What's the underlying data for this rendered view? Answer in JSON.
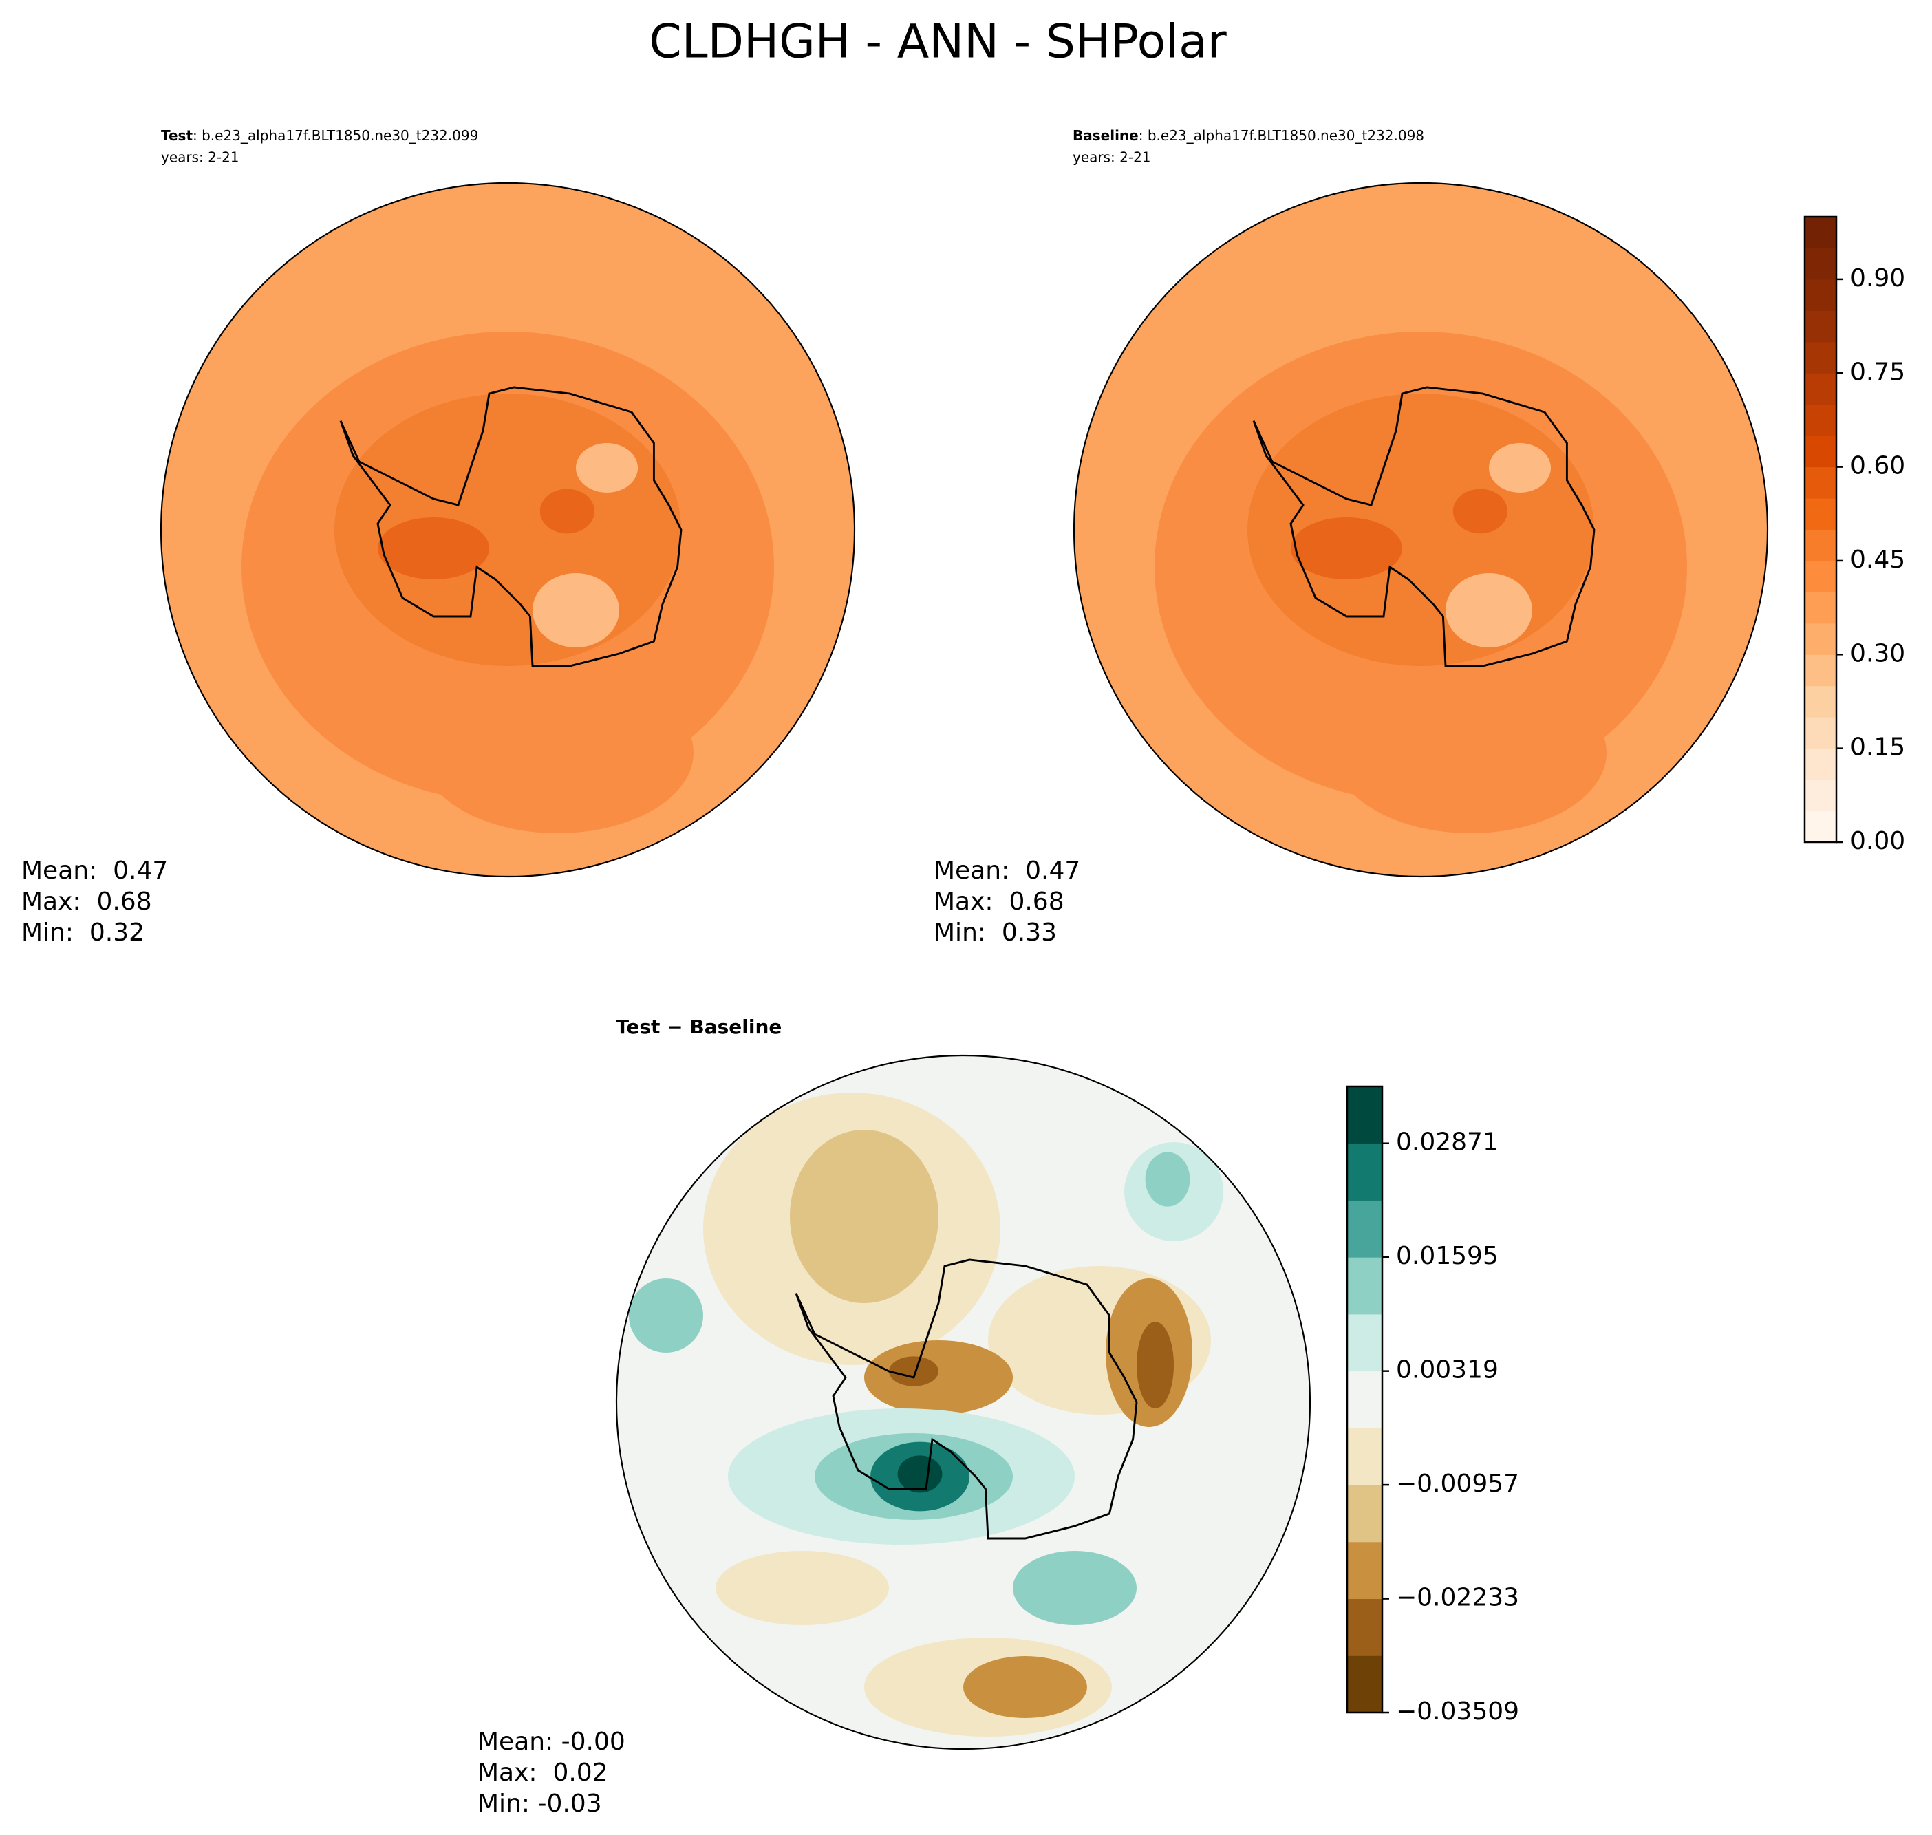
{
  "title": "CLDHGH - ANN - SHPolar",
  "panels": [
    {
      "label_bold": "Test",
      "label_rest": ": b.e23_alpha17f.BLT1850.ne30_t232.099",
      "subtitle": "years: 2-21",
      "stats": [
        "Mean:  0.47",
        "Max:  0.68",
        "Min:  0.32"
      ]
    },
    {
      "label_bold": "Baseline",
      "label_rest": ": b.e23_alpha17f.BLT1850.ne30_t232.098",
      "subtitle": "years: 2-21",
      "stats": [
        "Mean:  0.47",
        "Max:  0.68",
        "Min:  0.33"
      ]
    },
    {
      "label_bold": "Test − Baseline",
      "stats": [
        "Mean: -0.00",
        "Max:  0.02",
        "Min: -0.03"
      ]
    }
  ],
  "colorbars": [
    {
      "lim": [
        0,
        1
      ],
      "ticks": [
        {
          "value": 0,
          "label": "0.00"
        },
        {
          "value": 0.15,
          "label": "0.15"
        },
        {
          "value": 0.3,
          "label": "0.30"
        },
        {
          "value": 0.45,
          "label": "0.45"
        },
        {
          "value": 0.6,
          "label": "0.60"
        },
        {
          "value": 0.75,
          "label": "0.75"
        },
        {
          "value": 0.9,
          "label": "0.90"
        }
      ],
      "colors": [
        "#fff5eb",
        "#feeddc",
        "#fee6ce",
        "#fddbb8",
        "#fdd0a2",
        "#fdbf86",
        "#fdae6b",
        "#fd9e54",
        "#fd8d3c",
        "#f87d2a",
        "#f16913",
        "#e65a0b",
        "#d94801",
        "#c84303",
        "#b83c03",
        "#a63603",
        "#973004",
        "#8a2b04",
        "#7f2704",
        "#732204"
      ]
    },
    {
      "lim": [
        -0.03509,
        0.03509
      ],
      "ticks": [
        {
          "value": -0.03509,
          "label": "−0.03509"
        },
        {
          "value": -0.02233,
          "label": "−0.02233"
        },
        {
          "value": -0.00957,
          "label": "−0.00957"
        },
        {
          "value": 0.00319,
          "label": "0.00319"
        },
        {
          "value": 0.01595,
          "label": "0.01595"
        },
        {
          "value": 0.02871,
          "label": "0.02871"
        }
      ],
      "colors": [
        "#6e4107",
        "#9c5f1a",
        "#c99040",
        "#dfc485",
        "#f3e6c4",
        "#f2f4f2",
        "#cdece6",
        "#8fd0c4",
        "#48a59b",
        "#127a6e",
        "#00493f"
      ]
    }
  ]
}
